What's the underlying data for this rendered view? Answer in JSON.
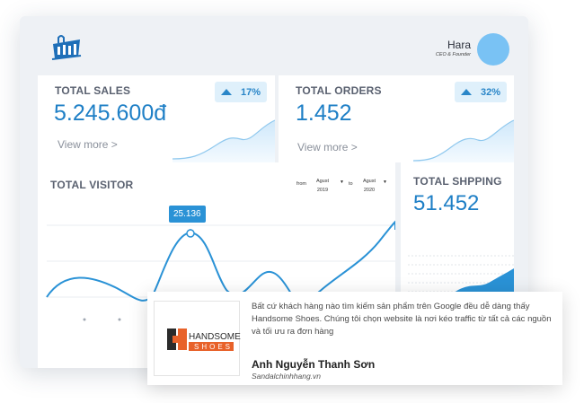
{
  "header": {
    "user_name": "Hara",
    "user_role": "CEO & Founder",
    "logo_icon": "shopping-bag-building-icon"
  },
  "total_sales": {
    "title": "TOTAL SALES",
    "value": "5.245.600đ",
    "change": "17%",
    "link": "View more >"
  },
  "total_orders": {
    "title": "TOTAL ORDERS",
    "value": "1.452",
    "change": "32%",
    "link": "View more >"
  },
  "total_visitor": {
    "title": "TOTAL VISITOR",
    "from_label": "from",
    "from_value": "Agust\n2019",
    "to_label": "to",
    "to_value": "Agust\n2020",
    "tooltip": "25.136"
  },
  "total_shipping": {
    "title": "TOTAL SHPPING",
    "value": "51.452"
  },
  "testimonial": {
    "quote": "Bất cứ khách hàng nào tìm kiếm sản phẩm trên Google đều dễ dàng thấy Handsome Shoes. Chúng tôi chọn website là nơi kéo traffic từ tất cả các nguồn và tối ưu ra đơn hàng",
    "author": "Anh Nguyễn Thanh Sơn",
    "website": "Sandalchinhhang.vn",
    "logo_top": "HANDSOME",
    "logo_bottom": "SHOES"
  },
  "colors": {
    "accent": "#1e7fc6",
    "line": "#2a92d6",
    "badge_bg": "#dff0fb",
    "logo_orange": "#e8622a",
    "logo_dark": "#2b2b2b"
  }
}
